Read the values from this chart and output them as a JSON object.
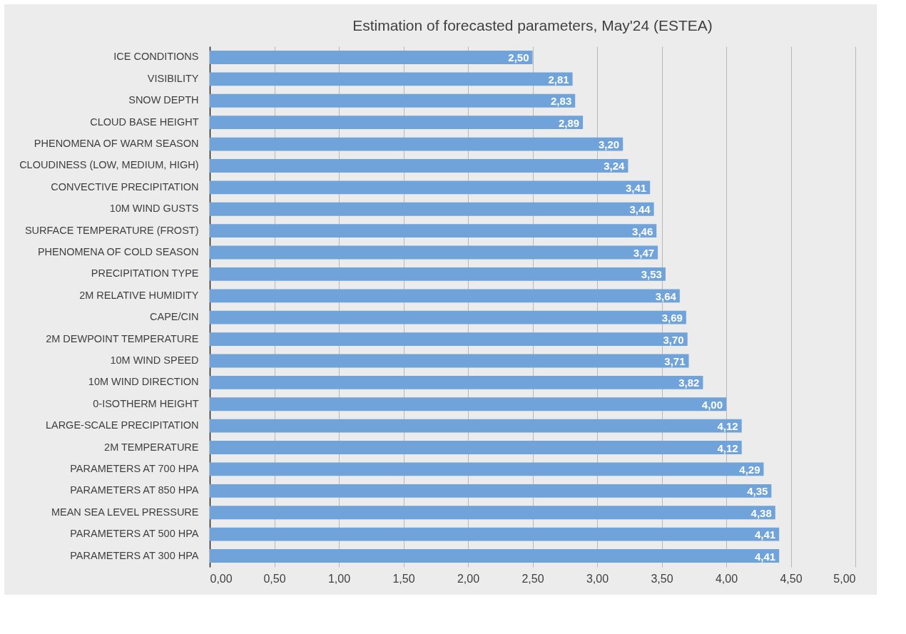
{
  "chart_data": {
    "type": "bar",
    "orientation": "horizontal",
    "title": "Estimation of forecasted parameters, May'24 (ESTEA)",
    "categories": [
      "ICE CONDITIONS",
      "VISIBILITY",
      "SNOW DEPTH",
      "CLOUD BASE HEIGHT",
      "PHENOMENA OF WARM SEASON",
      "CLOUDINESS (LOW, MEDIUM, HIGH)",
      "CONVECTIVE PRECIPITATION",
      "10M WIND GUSTS",
      "SURFACE TEMPERATURE (FROST)",
      "PHENOMENA OF COLD SEASON",
      "PRECIPITATION TYPE",
      "2M RELATIVE HUMIDITY",
      "CAPE/CIN",
      "2M DEWPOINT TEMPERATURE",
      "10M WIND SPEED",
      "10M WIND DIRECTION",
      "0-ISOTHERM HEIGHT",
      "LARGE-SCALE PRECIPITATION",
      "2M TEMPERATURE",
      "PARAMETERS AT 700 HPA",
      "PARAMETERS AT 850 HPA",
      "MEAN SEA LEVEL PRESSURE",
      "PARAMETERS AT 500 HPA",
      "PARAMETERS AT 300 HPA"
    ],
    "values": [
      2.5,
      2.81,
      2.83,
      2.89,
      3.2,
      3.24,
      3.41,
      3.44,
      3.46,
      3.47,
      3.53,
      3.64,
      3.69,
      3.7,
      3.71,
      3.82,
      4.0,
      4.12,
      4.12,
      4.29,
      4.35,
      4.38,
      4.41,
      4.41
    ],
    "value_labels": [
      "2,50",
      "2,81",
      "2,83",
      "2,89",
      "3,20",
      "3,24",
      "3,41",
      "3,44",
      "3,46",
      "3,47",
      "3,53",
      "3,64",
      "3,69",
      "3,70",
      "3,71",
      "3,82",
      "4,00",
      "4,12",
      "4,12",
      "4,29",
      "4,35",
      "4,38",
      "4,41",
      "4,41"
    ],
    "color": "#6fa3da",
    "xlim": [
      0,
      5
    ],
    "xticks": [
      {
        "value": 0,
        "label": "0,00"
      },
      {
        "value": 0.5,
        "label": "0,50"
      },
      {
        "value": 1,
        "label": "1,00"
      },
      {
        "value": 1.5,
        "label": "1,50"
      },
      {
        "value": 2,
        "label": "2,00"
      },
      {
        "value": 2.5,
        "label": "2,50"
      },
      {
        "value": 3,
        "label": "3,00"
      },
      {
        "value": 3.5,
        "label": "3,50"
      },
      {
        "value": 4,
        "label": "4,00"
      },
      {
        "value": 4.5,
        "label": "4,50"
      },
      {
        "value": 5,
        "label": "5,00"
      }
    ],
    "grid": "x"
  }
}
